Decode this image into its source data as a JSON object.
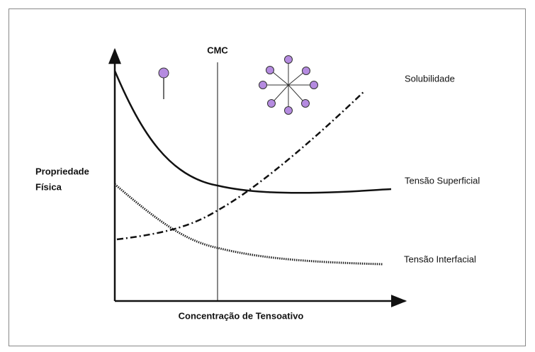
{
  "diagram": {
    "y_axis_label": [
      "Propriedade",
      "Física"
    ],
    "x_axis_label": "Concentração de Tensoativo",
    "cmc_label": "CMC",
    "curve_labels": [
      "Solubilidade",
      "Tensão Superficial",
      "Tensão Interfacial"
    ]
  }
}
